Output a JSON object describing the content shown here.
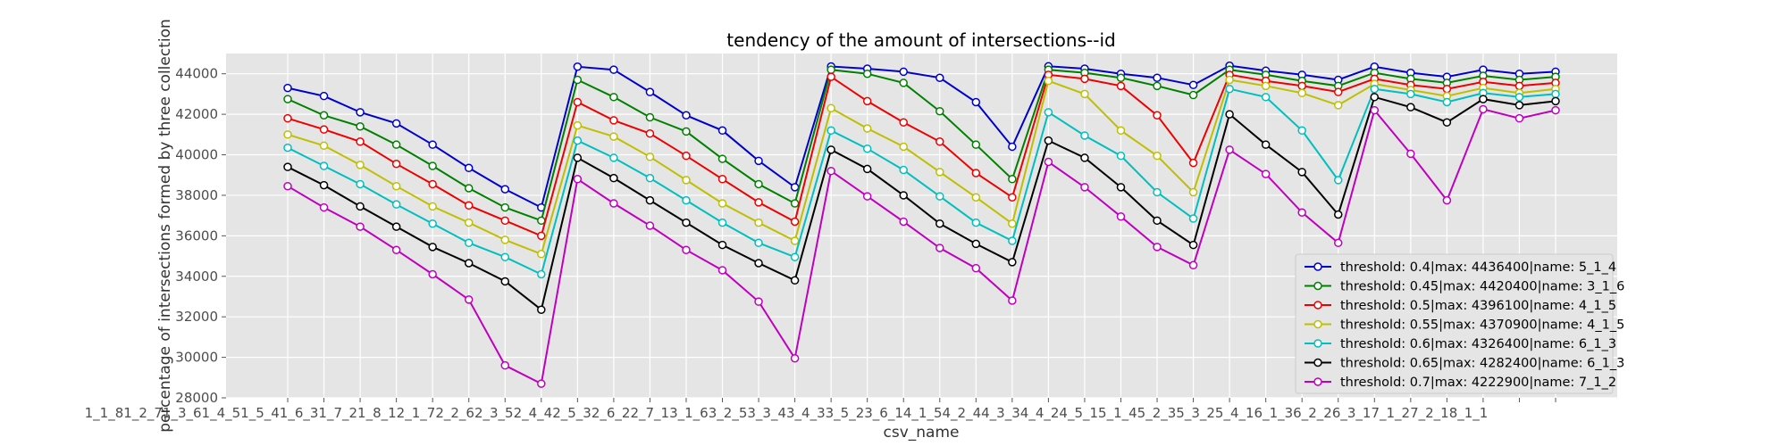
{
  "chart_data": {
    "type": "line",
    "title": "tendency of the amount of intersections--id",
    "xlabel": "csv_name",
    "ylabel": "percentage of intersections formed by three collection",
    "ylim": [
      28000,
      45000
    ],
    "yticks": [
      28000,
      30000,
      32000,
      34000,
      36000,
      38000,
      40000,
      42000,
      44000
    ],
    "grid": true,
    "legend_position": "lower right",
    "categories": [
      "1_1_8",
      "1_2_7",
      "1_3_6",
      "1_4_5",
      "1_5_4",
      "1_6_3",
      "1_7_2",
      "1_8_1",
      "2_1_7",
      "2_2_6",
      "2_3_5",
      "2_4_4",
      "2_5_3",
      "2_6_2",
      "2_7_1",
      "3_1_6",
      "3_2_5",
      "3_3_4",
      "3_4_3",
      "3_5_2",
      "3_6_1",
      "4_1_5",
      "4_2_4",
      "4_3_3",
      "4_4_2",
      "4_5_1",
      "5_1_4",
      "5_2_3",
      "5_3_2",
      "5_4_1",
      "6_1_3",
      "6_2_2",
      "6_3_1",
      "7_1_2",
      "7_2_1",
      "8_1_1"
    ],
    "xtick_text": "1_1_81_2_71_3_61_4_51_5_41_6_31_7_21_8_12_1_72_2_62_3_52_4_42_5_32_6_22_7_13_1_63_2_53_3_43_4_33_5_23_6_14_1_54_2_44_3_34_4_24_5_15_1_45_2_35_3_25_4_16_1_36_2_26_3_17_1_27_2_18_1_1",
    "series": [
      {
        "name": "threshold: 0.4|max: 4436400|name: 5_1_4",
        "color": "#0000cc",
        "values": [
          43300,
          42900,
          42100,
          41550,
          40500,
          39350,
          38300,
          37400,
          44350,
          44200,
          43100,
          41950,
          41200,
          39700,
          38400,
          44360,
          44250,
          44100,
          43800,
          42600,
          40400,
          44370,
          44250,
          44000,
          43800,
          43450,
          44400,
          44150,
          43950,
          43700,
          44350,
          44050,
          43850,
          44200,
          44000,
          44100
        ]
      },
      {
        "name": "threshold: 0.45|max: 4420400|name: 3_1_6",
        "color": "#008000",
        "values": [
          42750,
          41950,
          41400,
          40500,
          39450,
          38350,
          37400,
          36750,
          43700,
          42850,
          41850,
          41150,
          39800,
          38550,
          37600,
          44200,
          44000,
          43550,
          42150,
          40500,
          38800,
          44200,
          44050,
          43800,
          43400,
          42950,
          44200,
          43950,
          43650,
          43400,
          44050,
          43750,
          43550,
          43900,
          43700,
          43850
        ]
      },
      {
        "name": "threshold: 0.5|max: 4396100|name: 4_1_5",
        "color": "#ee0000",
        "values": [
          41800,
          41250,
          40650,
          39550,
          38550,
          37500,
          36750,
          36000,
          42600,
          41700,
          41050,
          39950,
          38800,
          37650,
          36700,
          43850,
          42650,
          41600,
          40650,
          39100,
          37900,
          43950,
          43750,
          43400,
          41950,
          39600,
          43950,
          43650,
          43400,
          43100,
          43750,
          43450,
          43250,
          43600,
          43400,
          43550
        ]
      },
      {
        "name": "threshold: 0.55|max: 4370900|name: 4_1_5",
        "color": "#bfbf00",
        "values": [
          41000,
          40450,
          39500,
          38450,
          37450,
          36650,
          35800,
          35100,
          41450,
          40900,
          39900,
          38750,
          37600,
          36650,
          35750,
          42300,
          41300,
          40400,
          39150,
          37900,
          36600,
          43650,
          43000,
          41200,
          39950,
          38150,
          43700,
          43400,
          43050,
          42450,
          43500,
          43200,
          42900,
          43300,
          43050,
          43250
        ]
      },
      {
        "name": "threshold: 0.6|max: 4326400|name: 6_1_3",
        "color": "#00bfbf",
        "values": [
          40350,
          39450,
          38550,
          37550,
          36600,
          35650,
          34950,
          34100,
          40700,
          39850,
          38850,
          37750,
          36650,
          35650,
          34950,
          41200,
          40300,
          39250,
          37950,
          36650,
          35750,
          42100,
          40950,
          39950,
          38150,
          36850,
          43250,
          42850,
          41200,
          38750,
          43250,
          43000,
          42600,
          43050,
          42850,
          43000
        ]
      },
      {
        "name": "threshold: 0.65|max: 4282400|name: 6_1_3",
        "color": "#000000",
        "values": [
          39400,
          38500,
          37450,
          36450,
          35450,
          34650,
          33750,
          32350,
          39850,
          38850,
          37750,
          36650,
          35550,
          34650,
          33800,
          40250,
          39300,
          38000,
          36600,
          35600,
          34700,
          40700,
          39850,
          38400,
          36750,
          35550,
          42000,
          40500,
          39150,
          37050,
          42850,
          42350,
          41600,
          42750,
          42450,
          42650
        ]
      },
      {
        "name": "threshold: 0.7|max: 4222900|name: 7_1_2",
        "color": "#bf00bf",
        "values": [
          38450,
          37400,
          36450,
          35300,
          34100,
          32850,
          29600,
          28700,
          38800,
          37600,
          36500,
          35300,
          34300,
          32750,
          29950,
          39200,
          37950,
          36700,
          35400,
          34400,
          32800,
          39650,
          38400,
          36950,
          35450,
          34550,
          40250,
          39050,
          37150,
          35650,
          42200,
          40050,
          37750,
          42250,
          41800,
          42200
        ]
      }
    ]
  }
}
